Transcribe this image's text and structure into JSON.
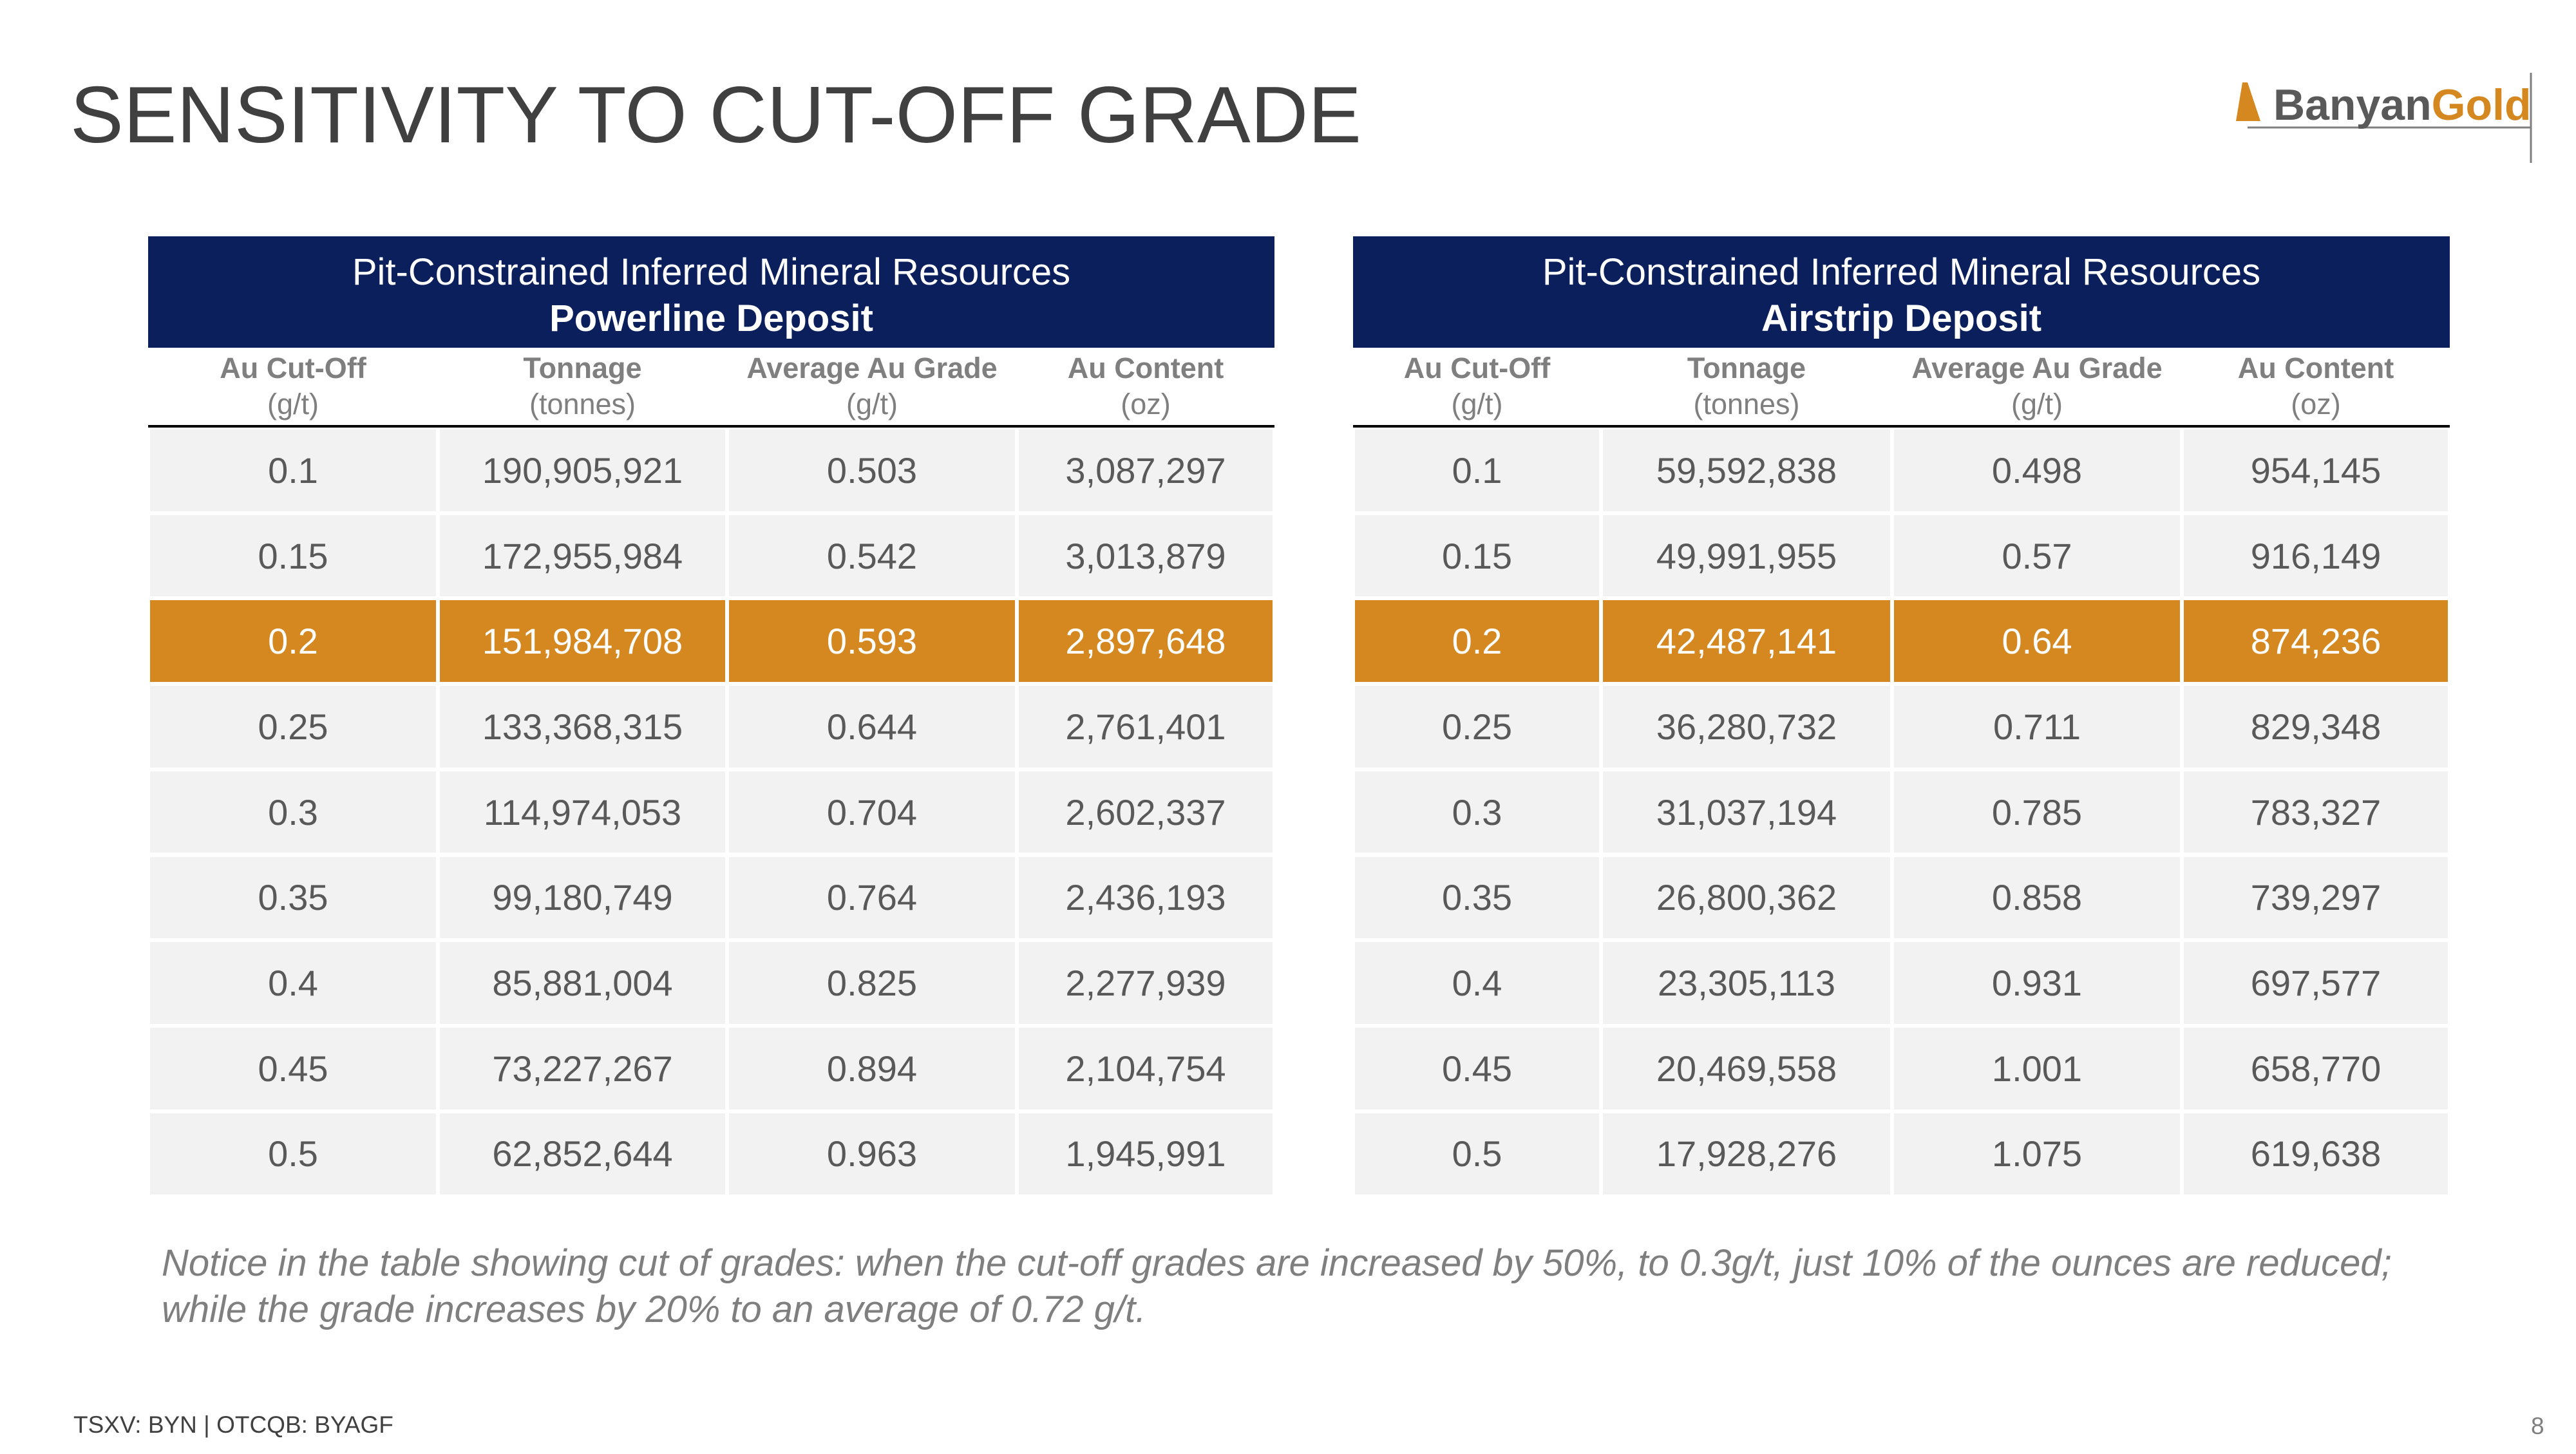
{
  "header": {
    "title": "SENSITIVITY TO CUT-OFF GRADE",
    "logo": {
      "part1": "Banyan",
      "part2": "Gold"
    }
  },
  "tables": [
    {
      "title": "Pit-Constrained Inferred Mineral Resources",
      "subtitle": "Powerline Deposit",
      "columns": [
        {
          "name": "Au Cut-Off",
          "unit": "(g/t)"
        },
        {
          "name": "Tonnage",
          "unit": "(tonnes)"
        },
        {
          "name": "Average Au Grade",
          "unit": "(g/t)"
        },
        {
          "name": "Au Content",
          "unit": "(oz)"
        }
      ],
      "rows": [
        [
          "0.1",
          "190,905,921",
          "0.503",
          "3,087,297"
        ],
        [
          "0.15",
          "172,955,984",
          "0.542",
          "3,013,879"
        ],
        [
          "0.2",
          "151,984,708",
          "0.593",
          "2,897,648"
        ],
        [
          "0.25",
          "133,368,315",
          "0.644",
          "2,761,401"
        ],
        [
          "0.3",
          "114,974,053",
          "0.704",
          "2,602,337"
        ],
        [
          "0.35",
          "99,180,749",
          "0.764",
          "2,436,193"
        ],
        [
          "0.4",
          "85,881,004",
          "0.825",
          "2,277,939"
        ],
        [
          "0.45",
          "73,227,267",
          "0.894",
          "2,104,754"
        ],
        [
          "0.5",
          "62,852,644",
          "0.963",
          "1,945,991"
        ]
      ]
    },
    {
      "title": "Pit-Constrained Inferred Mineral Resources",
      "subtitle": "Airstrip Deposit",
      "columns": [
        {
          "name": "Au Cut-Off",
          "unit": "(g/t)"
        },
        {
          "name": "Tonnage",
          "unit": "(tonnes)"
        },
        {
          "name": "Average Au Grade",
          "unit": "(g/t)"
        },
        {
          "name": "Au Content",
          "unit": "(oz)"
        }
      ],
      "rows": [
        [
          "0.1",
          "59,592,838",
          "0.498",
          "954,145"
        ],
        [
          "0.15",
          "49,991,955",
          "0.57",
          "916,149"
        ],
        [
          "0.2",
          "42,487,141",
          "0.64",
          "874,236"
        ],
        [
          "0.25",
          "36,280,732",
          "0.711",
          "829,348"
        ],
        [
          "0.3",
          "31,037,194",
          "0.785",
          "783,327"
        ],
        [
          "0.35",
          "26,800,362",
          "0.858",
          "739,297"
        ],
        [
          "0.4",
          "23,305,113",
          "0.931",
          "697,577"
        ],
        [
          "0.45",
          "20,469,558",
          "1.001",
          "658,770"
        ],
        [
          "0.5",
          "17,928,276",
          "1.075",
          "619,638"
        ]
      ]
    }
  ],
  "note": [
    "Notice in the table showing cut of grades: when the cut-off grades are increased by 50%, to 0.3g/t, just 10% of the ounces are reduced;",
    "while the grade increases by 20% to an average of 0.72 g/t."
  ],
  "footer": {
    "ticker": "TSXV: BYN | OTCQB: BYAGF",
    "page": "8"
  }
}
